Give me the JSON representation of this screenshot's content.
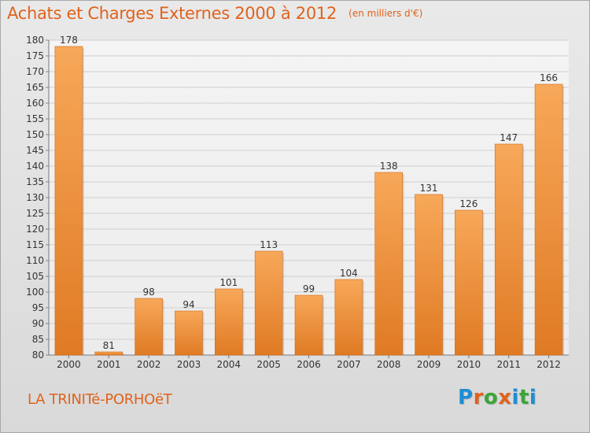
{
  "title": "Achats et Charges Externes 2000 à 2012",
  "unit_note": "(en milliers d'€)",
  "place": "LA TRINITé-PORHOëT",
  "brand": "Proxiti",
  "colors": {
    "title": "#e0621c",
    "bar_top": "#f7a859",
    "bar_bottom": "#e07a24",
    "brand_letters": [
      "#1b8fd4",
      "#e0621c",
      "#3aa636",
      "#e0621c",
      "#1b8fd4",
      "#3aa636",
      "#1b8fd4"
    ]
  },
  "chart_data": {
    "type": "bar",
    "title": "Achats et Charges Externes 2000 à 2012",
    "subtitle": "(en milliers d'€)",
    "categories": [
      "2000",
      "2001",
      "2002",
      "2003",
      "2004",
      "2005",
      "2006",
      "2007",
      "2008",
      "2009",
      "2010",
      "2011",
      "2012"
    ],
    "values": [
      178,
      81,
      98,
      94,
      101,
      113,
      99,
      104,
      138,
      131,
      126,
      147,
      166
    ],
    "data_labels": [
      "178",
      "81",
      "98",
      "94",
      "101",
      "113",
      "99",
      "104",
      "138",
      "131",
      "126",
      "147",
      "166"
    ],
    "ylim": [
      80,
      180
    ],
    "yticks": [
      80,
      85,
      90,
      95,
      100,
      105,
      110,
      115,
      120,
      125,
      130,
      135,
      140,
      145,
      150,
      155,
      160,
      165,
      170,
      175,
      180
    ],
    "grid": true,
    "xlabel": "",
    "ylabel": ""
  }
}
